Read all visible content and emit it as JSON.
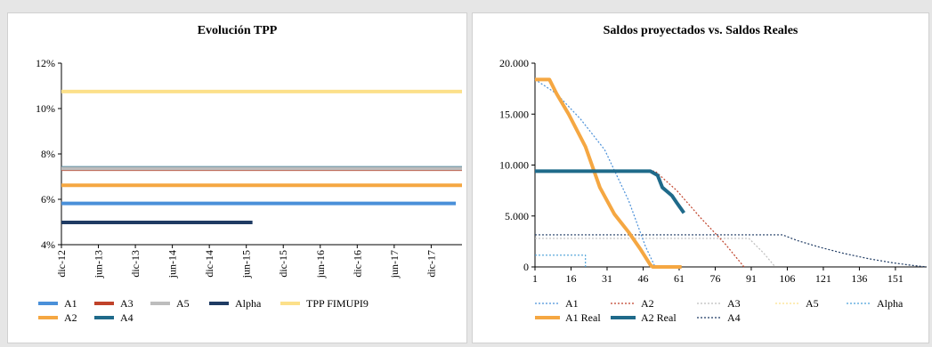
{
  "chart_data": [
    {
      "type": "line",
      "title": "Evolución TPP",
      "xlabel": "",
      "ylabel": "",
      "x_tick_labels": [
        "dic-12",
        "jun-13",
        "dic-13",
        "jun-14",
        "dic-14",
        "jun-15",
        "dic-15",
        "jun-16",
        "dic-16",
        "jun-17",
        "dic-17"
      ],
      "y_tick_labels": [
        "4%",
        "6%",
        "8%",
        "10%",
        "12%"
      ],
      "ylim": [
        4,
        12
      ],
      "x_unit": "months since dic-12",
      "xlim": [
        0,
        65
      ],
      "grid": false,
      "legend_position": "bottom",
      "series": [
        {
          "name": "A1",
          "color": "#4a90d9",
          "points": [
            [
              0,
              5.82
            ],
            [
              64,
              5.82
            ]
          ]
        },
        {
          "name": "A2",
          "color": "#f5a742",
          "points": [
            [
              0,
              6.62
            ],
            [
              65,
              6.62
            ]
          ]
        },
        {
          "name": "A3",
          "color": "#c0422a",
          "points": [
            [
              0,
              7.33
            ],
            [
              65,
              7.33
            ]
          ]
        },
        {
          "name": "A4",
          "color": "#1f6a8a",
          "points": [
            [
              0,
              7.38
            ],
            [
              65,
              7.38
            ]
          ]
        },
        {
          "name": "A5",
          "color": "#bdbdbd",
          "points": [
            [
              0,
              7.36
            ],
            [
              65,
              7.36
            ]
          ]
        },
        {
          "name": "Alpha",
          "color": "#1f3b63",
          "points": [
            [
              0,
              4.98
            ],
            [
              31,
              4.98
            ]
          ]
        },
        {
          "name": "TPP FIMUPI9",
          "color": "#fce08a",
          "points": [
            [
              0,
              10.75
            ],
            [
              65,
              10.75
            ]
          ]
        }
      ]
    },
    {
      "type": "line",
      "title": "Saldos proyectados vs. Saldos Reales",
      "xlabel": "",
      "ylabel": "",
      "x_ticks": [
        1,
        16,
        31,
        46,
        61,
        76,
        91,
        106,
        121,
        136,
        151
      ],
      "y_tick_labels": [
        "0",
        "5.000",
        "10.000",
        "15.000",
        "20.000"
      ],
      "ylim": [
        0,
        20000
      ],
      "xlim": [
        1,
        164
      ],
      "grid": false,
      "legend_position": "bottom",
      "series": [
        {
          "name": "A1",
          "color": "#4a90d9",
          "dashed": true,
          "points": [
            [
              1,
              18400
            ],
            [
              10,
              17000
            ],
            [
              20,
              14500
            ],
            [
              30,
              11500
            ],
            [
              40,
              6500
            ],
            [
              47,
              2000
            ],
            [
              51,
              0
            ]
          ]
        },
        {
          "name": "A2",
          "color": "#c0422a",
          "dashed": true,
          "points": [
            [
              1,
              9400
            ],
            [
              51,
              9400
            ],
            [
              60,
              7500
            ],
            [
              70,
              4800
            ],
            [
              80,
              2300
            ],
            [
              88,
              0
            ]
          ]
        },
        {
          "name": "A3",
          "color": "#bdbdbd",
          "dashed": true,
          "points": [
            [
              1,
              2800
            ],
            [
              90,
              2800
            ],
            [
              96,
              1400
            ],
            [
              101,
              0
            ]
          ]
        },
        {
          "name": "A5",
          "color": "#fce08a",
          "dashed": true,
          "points": [
            [
              1,
              9200
            ],
            [
              90,
              9200
            ]
          ]
        },
        {
          "name": "Alpha",
          "color": "#4aa0d9",
          "dashed": true,
          "points": [
            [
              1,
              1150
            ],
            [
              22,
              1150
            ],
            [
              22,
              0
            ]
          ]
        },
        {
          "name": "A1 Real",
          "color": "#f5a742",
          "dashed": false,
          "points": [
            [
              1,
              18400
            ],
            [
              7,
              18400
            ],
            [
              10,
              17000
            ],
            [
              15,
              15000
            ],
            [
              22,
              11800
            ],
            [
              28,
              7800
            ],
            [
              34,
              5200
            ],
            [
              40,
              3400
            ],
            [
              45,
              1700
            ],
            [
              49,
              200
            ],
            [
              50,
              0
            ],
            [
              62,
              0
            ]
          ]
        },
        {
          "name": "A2 Real",
          "color": "#1f6a8a",
          "dashed": false,
          "points": [
            [
              1,
              9400
            ],
            [
              49,
              9400
            ],
            [
              52,
              9000
            ],
            [
              54,
              7800
            ],
            [
              58,
              7000
            ],
            [
              60,
              6300
            ],
            [
              63,
              5300
            ]
          ]
        },
        {
          "name": "A4",
          "color": "#1f3b63",
          "dashed": true,
          "points": [
            [
              1,
              3150
            ],
            [
              104,
              3150
            ],
            [
              110,
              2600
            ],
            [
              120,
              1900
            ],
            [
              130,
              1300
            ],
            [
              140,
              800
            ],
            [
              150,
              400
            ],
            [
              158,
              150
            ],
            [
              164,
              0
            ]
          ]
        }
      ]
    }
  ]
}
